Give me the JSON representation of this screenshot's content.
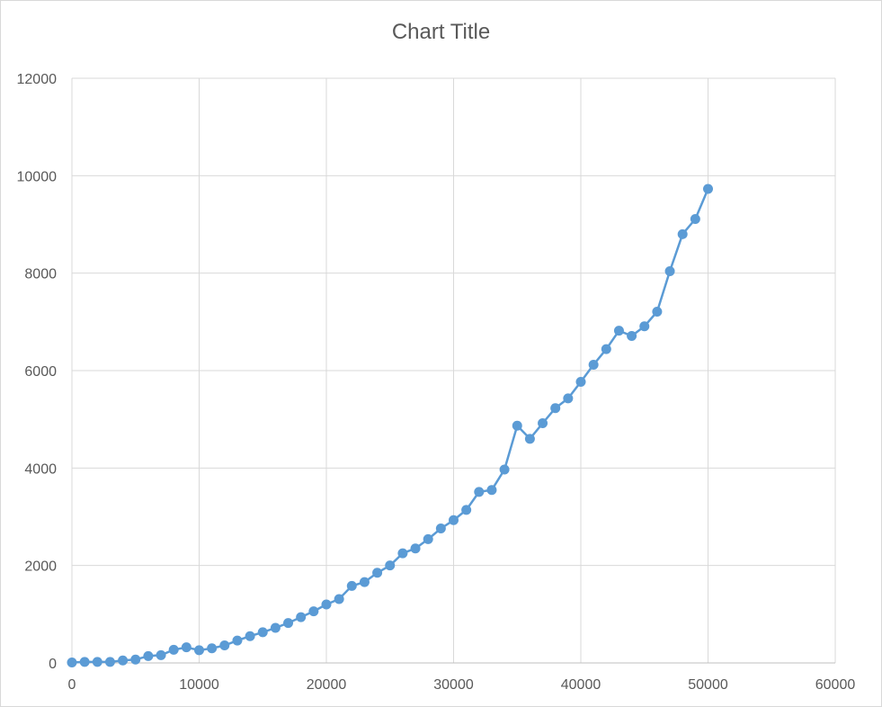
{
  "chart_data": {
    "type": "scatter",
    "title": "Chart Title",
    "xlabel": "",
    "ylabel": "",
    "xlim": [
      0,
      60000
    ],
    "ylim": [
      0,
      12000
    ],
    "xticks": [
      0,
      10000,
      20000,
      30000,
      40000,
      50000,
      60000
    ],
    "yticks": [
      0,
      2000,
      4000,
      6000,
      8000,
      10000,
      12000
    ],
    "xtick_labels": [
      "0",
      "10000",
      "20000",
      "30000",
      "40000",
      "50000",
      "60000"
    ],
    "ytick_labels": [
      "0",
      "2000",
      "4000",
      "6000",
      "8000",
      "10000",
      "12000"
    ],
    "grid": true,
    "legend": "none",
    "series": [
      {
        "color": "#5b9bd5",
        "marker": "circle",
        "line": "straight",
        "points": [
          [
            0,
            10
          ],
          [
            1000,
            20
          ],
          [
            2000,
            20
          ],
          [
            3000,
            20
          ],
          [
            4000,
            50
          ],
          [
            5000,
            70
          ],
          [
            6000,
            140
          ],
          [
            7000,
            160
          ],
          [
            8000,
            270
          ],
          [
            9000,
            320
          ],
          [
            10000,
            260
          ],
          [
            11000,
            300
          ],
          [
            12000,
            360
          ],
          [
            13000,
            460
          ],
          [
            14000,
            550
          ],
          [
            15000,
            630
          ],
          [
            16000,
            720
          ],
          [
            17000,
            820
          ],
          [
            18000,
            940
          ],
          [
            19000,
            1060
          ],
          [
            20000,
            1200
          ],
          [
            21000,
            1310
          ],
          [
            22000,
            1580
          ],
          [
            23000,
            1660
          ],
          [
            24000,
            1850
          ],
          [
            25000,
            2000
          ],
          [
            26000,
            2250
          ],
          [
            27000,
            2350
          ],
          [
            28000,
            2540
          ],
          [
            29000,
            2760
          ],
          [
            30000,
            2930
          ],
          [
            31000,
            3140
          ],
          [
            32000,
            3510
          ],
          [
            33000,
            3550
          ],
          [
            34000,
            3970
          ],
          [
            35000,
            4870
          ],
          [
            36000,
            4600
          ],
          [
            37000,
            4920
          ],
          [
            38000,
            5230
          ],
          [
            39000,
            5430
          ],
          [
            40000,
            5770
          ],
          [
            41000,
            6120
          ],
          [
            42000,
            6440
          ],
          [
            43000,
            6820
          ],
          [
            44000,
            6710
          ],
          [
            45000,
            6910
          ],
          [
            46000,
            7210
          ],
          [
            47000,
            8040
          ],
          [
            48000,
            8800
          ],
          [
            49000,
            9110
          ],
          [
            50000,
            9730
          ]
        ]
      }
    ]
  }
}
